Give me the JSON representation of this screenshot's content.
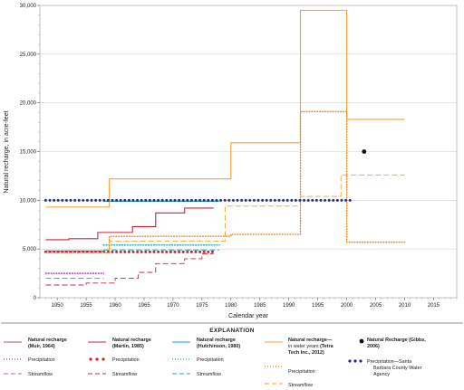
{
  "chart_data": {
    "type": "line",
    "ylabel": "Natural recharge, in acre-feet",
    "xlabel": "Calendar year",
    "xlim": [
      1947,
      2019
    ],
    "ylim": [
      0,
      30000
    ],
    "xticks": [
      1950,
      1955,
      1960,
      1965,
      1970,
      1975,
      1980,
      1985,
      1990,
      1995,
      2000,
      2005,
      2010,
      2015
    ],
    "yticks": [
      0,
      5000,
      10000,
      15000,
      20000,
      25000,
      30000
    ],
    "ytick_labels": [
      "0",
      "5,000",
      "10,000",
      "15,000",
      "20,000",
      "25,000",
      "30,000"
    ],
    "grid": "horizontal",
    "series": [
      {
        "id": "muir_recharge",
        "color": "#a64ca6",
        "style": "solid",
        "step": true,
        "points": [
          [
            1948,
            4800
          ],
          [
            1958,
            4800
          ]
        ]
      },
      {
        "id": "muir_precip",
        "color": "#9b3fae",
        "style": "dotted",
        "step": true,
        "points": [
          [
            1948,
            2500
          ],
          [
            1958,
            2500
          ]
        ]
      },
      {
        "id": "muir_stream",
        "color": "#b06ab8",
        "style": "dashed",
        "step": true,
        "points": [
          [
            1948,
            2000
          ],
          [
            1958,
            2000
          ]
        ]
      },
      {
        "id": "martin_recharge",
        "color": "#c0283c",
        "style": "solid",
        "step": true,
        "points": [
          [
            1948,
            5950
          ],
          [
            1952,
            6050
          ],
          [
            1957,
            6700
          ],
          [
            1963,
            7300
          ],
          [
            1967,
            8700
          ],
          [
            1972,
            9200
          ],
          [
            1977,
            9200
          ]
        ]
      },
      {
        "id": "martin_precip",
        "color": "#d91e2b",
        "style": "bigdot",
        "step": true,
        "points": [
          [
            1948,
            4700
          ],
          [
            1977,
            4700
          ]
        ]
      },
      {
        "id": "martin_stream",
        "color": "#c0283c",
        "style": "dashed",
        "step": true,
        "points": [
          [
            1948,
            1300
          ],
          [
            1955,
            1500
          ],
          [
            1960,
            2000
          ],
          [
            1964,
            2600
          ],
          [
            1967,
            3500
          ],
          [
            1972,
            4000
          ],
          [
            1975,
            4500
          ],
          [
            1977,
            4500
          ]
        ]
      },
      {
        "id": "hutch_recharge",
        "color": "#1aa7b8",
        "style": "solid",
        "step": true,
        "points": [
          [
            1958,
            9900
          ],
          [
            1978,
            9900
          ]
        ]
      },
      {
        "id": "hutch_precip",
        "color": "#1aa7b8",
        "style": "dotted",
        "step": true,
        "points": [
          [
            1958,
            5400
          ],
          [
            1978,
            5400
          ]
        ]
      },
      {
        "id": "hutch_stream",
        "color": "#1aa7b8",
        "style": "dashed",
        "step": true,
        "points": [
          [
            1958,
            4900
          ],
          [
            1978,
            4900
          ]
        ]
      },
      {
        "id": "tetra_recharge",
        "color": "#f0a030",
        "style": "solid",
        "step": true,
        "points": [
          [
            1948,
            9300
          ],
          [
            1958,
            9300
          ],
          [
            1959,
            12200
          ],
          [
            1979,
            12200
          ],
          [
            1980,
            15900
          ],
          [
            1991,
            15900
          ],
          [
            1992,
            29500
          ],
          [
            1999,
            29500
          ],
          [
            2000,
            18300
          ],
          [
            2010,
            18300
          ]
        ]
      },
      {
        "id": "tetra_precip",
        "color": "#f08a1c",
        "style": "dotted",
        "step": true,
        "points": [
          [
            1948,
            4600
          ],
          [
            1958,
            4600
          ],
          [
            1959,
            6300
          ],
          [
            1979,
            6300
          ],
          [
            1980,
            6500
          ],
          [
            1991,
            6500
          ],
          [
            1992,
            19100
          ],
          [
            1999,
            19100
          ],
          [
            2000,
            5700
          ],
          [
            2010,
            5700
          ]
        ]
      },
      {
        "id": "tetra_stream",
        "color": "#f0a030",
        "style": "dashed",
        "step": true,
        "points": [
          [
            1948,
            4600
          ],
          [
            1958,
            4600
          ],
          [
            1959,
            5800
          ],
          [
            1978,
            5800
          ],
          [
            1979,
            9400
          ],
          [
            1991,
            9400
          ],
          [
            1992,
            10400
          ],
          [
            1998,
            10400
          ],
          [
            1999,
            12600
          ],
          [
            2010,
            12600
          ]
        ]
      },
      {
        "id": "gibbs_point",
        "color": "#111111",
        "style": "point",
        "points": [
          [
            2003,
            15000
          ]
        ]
      },
      {
        "id": "sbcwa_precip",
        "color": "#2a2f86",
        "style": "bigdot",
        "step": true,
        "points": [
          [
            1948,
            10000
          ],
          [
            2001,
            10000
          ]
        ]
      }
    ]
  },
  "legend": {
    "heading": "EXPLANATION",
    "groups": [
      {
        "id": "muir",
        "title": "Natural recharge",
        "subtitle": "(Muir, 1964)",
        "rows": [
          "Precipitation",
          "Streamflow"
        ]
      },
      {
        "id": "martin",
        "title": "Natural recharge",
        "subtitle": "(Martin, 1985)",
        "rows": [
          "Precipitation",
          "Streamflow"
        ]
      },
      {
        "id": "hutch",
        "title": "Natural recharge",
        "subtitle": "(Hutchinson, 1980)",
        "rows": [
          "Precipitation",
          "Streamflow"
        ]
      },
      {
        "id": "tetra",
        "title": "Natural recharge",
        "title_rest": "—",
        "sub_rest": "in water years",
        "sub_bold": "(Tetra",
        "sub2": "Tech Inc., 2012)",
        "rows": [
          "Precipitation",
          "Streamflow"
        ]
      },
      {
        "id": "gibbs",
        "title": "Natural Recharge (Gibbs,",
        "subtitle": "2006)",
        "rows": [
          "Precipitation—Santa",
          "Barbara County Water",
          "Agency"
        ]
      }
    ]
  }
}
